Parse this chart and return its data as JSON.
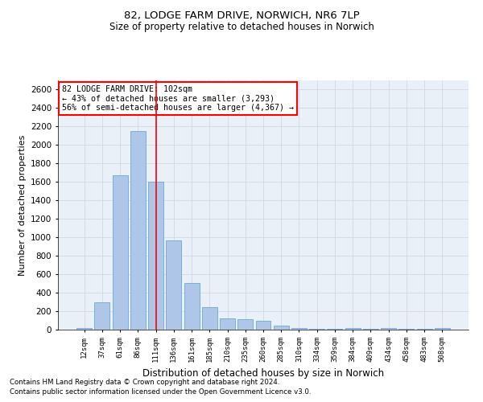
{
  "title1": "82, LODGE FARM DRIVE, NORWICH, NR6 7LP",
  "title2": "Size of property relative to detached houses in Norwich",
  "xlabel": "Distribution of detached houses by size in Norwich",
  "ylabel": "Number of detached properties",
  "categories": [
    "12sqm",
    "37sqm",
    "61sqm",
    "86sqm",
    "111sqm",
    "136sqm",
    "161sqm",
    "185sqm",
    "210sqm",
    "235sqm",
    "260sqm",
    "285sqm",
    "310sqm",
    "334sqm",
    "359sqm",
    "384sqm",
    "409sqm",
    "434sqm",
    "458sqm",
    "483sqm",
    "508sqm"
  ],
  "values": [
    20,
    300,
    1670,
    2150,
    1600,
    970,
    505,
    245,
    120,
    110,
    95,
    40,
    15,
    10,
    5,
    20,
    5,
    15,
    5,
    5,
    20
  ],
  "bar_color": "#aec6e8",
  "bar_edge_color": "#5a9fd4",
  "grid_color": "#d0d8e8",
  "vline_x_index": 4,
  "vline_color": "red",
  "annotation_text": "82 LODGE FARM DRIVE: 102sqm\n← 43% of detached houses are smaller (3,293)\n56% of semi-detached houses are larger (4,367) →",
  "annotation_box_color": "white",
  "annotation_box_edge": "red",
  "footnote1": "Contains HM Land Registry data © Crown copyright and database right 2024.",
  "footnote2": "Contains public sector information licensed under the Open Government Licence v3.0.",
  "ylim": [
    0,
    2700
  ],
  "yticks": [
    0,
    200,
    400,
    600,
    800,
    1000,
    1200,
    1400,
    1600,
    1800,
    2000,
    2200,
    2400,
    2600
  ],
  "bg_color": "#eaf0f8",
  "fig_bg_color": "#ffffff",
  "bar_width": 0.85
}
